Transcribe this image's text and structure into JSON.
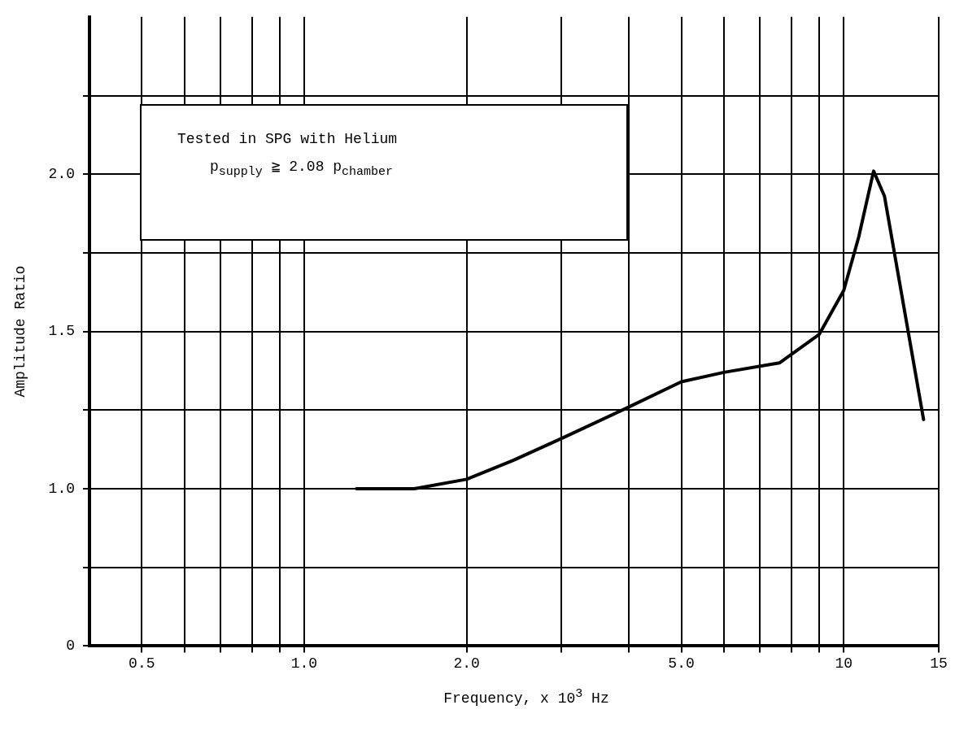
{
  "chart_data": {
    "type": "line",
    "xlabel": "Frequency, x 10$^{3}$ Hz",
    "ylabel": "Amplitude Ratio",
    "annotations": [
      "Tested in SPG with Helium",
      "p$_{supply}$ ≧ 2.08  p$_{chamber}$"
    ],
    "log": "x",
    "xlim": [
      0.4,
      15
    ],
    "xticks": [
      0.5,
      {
        "value": 0.6,
        "label": null
      },
      {
        "value": 0.7,
        "label": null
      },
      {
        "value": 0.8,
        "label": null
      },
      {
        "value": 0.9,
        "label": null
      },
      {
        "value": 1,
        "label": "1.0"
      },
      {
        "value": 2,
        "label": "2.0"
      },
      {
        "value": 3,
        "label": null
      },
      {
        "value": 4,
        "label": null
      },
      {
        "value": 5,
        "label": "5.0"
      },
      {
        "value": 6,
        "label": null
      },
      {
        "value": 7,
        "label": null
      },
      {
        "value": 8,
        "label": null
      },
      {
        "value": 9,
        "label": null
      },
      10,
      15
    ],
    "ylim": [
      0.5,
      2.5
    ],
    "yticks": [
      {
        "value": 0.5,
        "label": "0"
      },
      {
        "value": 0.75,
        "label": null
      },
      {
        "value": 1,
        "label": "1.0"
      },
      {
        "value": 1.25,
        "label": null
      },
      {
        "value": 1.5,
        "label": "1.5"
      },
      {
        "value": 1.75,
        "label": null
      },
      {
        "value": 2,
        "label": "2.0"
      },
      {
        "value": 2.25,
        "label": null
      }
    ],
    "grid": true,
    "legend": false,
    "marker": "none",
    "line_style": "solid",
    "series": [
      {
        "color": "#000000",
        "x": [
          1.25,
          1.6,
          2.0,
          2.44,
          3.0,
          4.0,
          5.0,
          6.0,
          7.6,
          9.0,
          10,
          10.66,
          11.36,
          11.9,
          14.06
        ],
        "values": [
          1.0,
          1.0,
          1.03,
          1.09,
          1.16,
          1.26,
          1.34,
          1.37,
          1.4,
          1.49,
          1.63,
          1.8,
          2.01,
          1.93,
          1.22
        ]
      }
    ]
  }
}
